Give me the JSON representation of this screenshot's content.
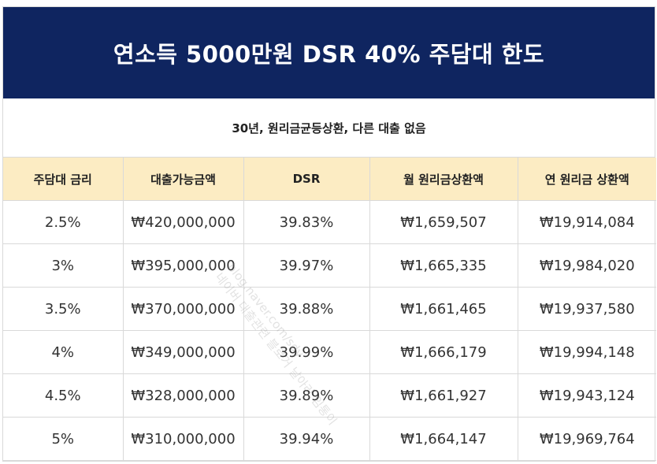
{
  "title": "연소득 5000만원 DSR 40% 주담대 한도",
  "subtitle": "30년, 원리금균등상환, 다른 대출 없음",
  "table": {
    "headers": [
      "주담대 금리",
      "대출가능금액",
      "DSR",
      "월 원리금상환액",
      "연 원리금 상환액"
    ],
    "rows": [
      [
        "2.5%",
        "₩420,000,000",
        "39.83%",
        "₩1,659,507",
        "₩19,914,084"
      ],
      [
        "3%",
        "₩395,000,000",
        "39.97%",
        "₩1,665,335",
        "₩19,984,020"
      ],
      [
        "3.5%",
        "₩370,000,000",
        "39.88%",
        "₩1,661,465",
        "₩19,937,580"
      ],
      [
        "4%",
        "₩349,000,000",
        "39.99%",
        "₩1,666,179",
        "₩19,994,148"
      ],
      [
        "4.5%",
        "₩328,000,000",
        "39.89%",
        "₩1,661,927",
        "₩19,943,124"
      ],
      [
        "5%",
        "₩310,000,000",
        "39.94%",
        "₩1,664,147",
        "₩19,969,764"
      ]
    ]
  },
  "watermark": {
    "line1": "blog.naver.com/sdy",
    "line2": "네이버 대출관련 블로거 날아라 임통이"
  },
  "colors": {
    "title_bg": "#0f2560",
    "header_bg": "#fcecc3"
  }
}
